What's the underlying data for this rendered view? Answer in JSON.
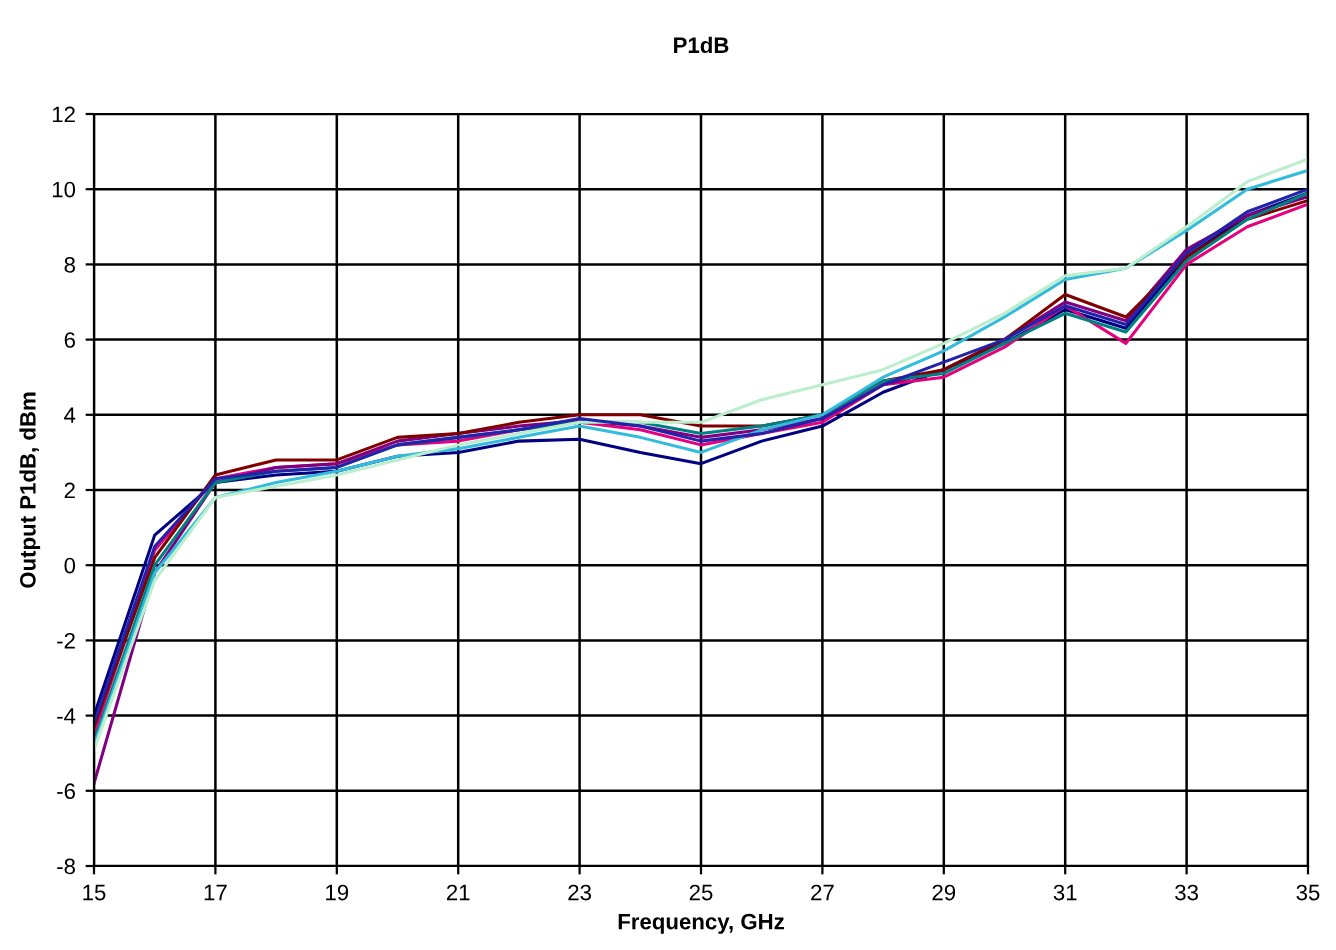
{
  "chart_data": {
    "type": "line",
    "title": "P1dB",
    "xlabel": "Frequency, GHz",
    "ylabel": "Output P1dB, dBm",
    "x": [
      15,
      16,
      17,
      18,
      19,
      20,
      21,
      22,
      23,
      24,
      25,
      26,
      27,
      28,
      29,
      30,
      31,
      32,
      33,
      34,
      35
    ],
    "series": [
      {
        "color": "#000080",
        "values": [
          -4.0,
          0.8,
          2.2,
          2.4,
          2.5,
          2.9,
          3.0,
          3.3,
          3.35,
          3.0,
          2.7,
          3.3,
          3.7,
          4.6,
          5.2,
          5.9,
          6.8,
          6.3,
          8.2,
          9.3,
          9.9
        ]
      },
      {
        "color": "#e6007e",
        "values": [
          -4.5,
          0.4,
          2.3,
          2.6,
          2.7,
          3.2,
          3.3,
          3.6,
          3.8,
          3.6,
          3.2,
          3.5,
          3.8,
          4.8,
          5.0,
          5.8,
          6.9,
          5.9,
          8.0,
          9.0,
          9.6
        ]
      },
      {
        "color": "#800080",
        "values": [
          -5.8,
          -0.2,
          2.2,
          2.6,
          2.7,
          3.3,
          3.5,
          3.7,
          3.85,
          3.7,
          3.4,
          3.6,
          3.9,
          4.8,
          5.2,
          6.0,
          7.0,
          6.5,
          8.4,
          9.3,
          9.8
        ]
      },
      {
        "color": "#800000",
        "values": [
          -4.3,
          0.2,
          2.4,
          2.8,
          2.8,
          3.4,
          3.5,
          3.8,
          4.0,
          4.0,
          3.7,
          3.7,
          4.0,
          4.9,
          5.2,
          6.0,
          7.2,
          6.6,
          8.2,
          9.2,
          9.7
        ]
      },
      {
        "color": "#008080",
        "values": [
          -4.7,
          0.0,
          2.2,
          2.5,
          2.6,
          3.2,
          3.4,
          3.6,
          3.8,
          3.8,
          3.5,
          3.7,
          4.0,
          4.9,
          5.1,
          5.9,
          6.7,
          6.2,
          8.1,
          9.2,
          9.9
        ]
      },
      {
        "color": "#33bbdd",
        "values": [
          -4.8,
          -0.2,
          1.8,
          2.2,
          2.5,
          2.9,
          3.1,
          3.4,
          3.7,
          3.4,
          3.0,
          3.6,
          4.0,
          5.0,
          5.7,
          6.6,
          7.6,
          7.9,
          8.9,
          10.0,
          10.5
        ]
      },
      {
        "color": "#bbeecc",
        "values": [
          -4.9,
          -0.4,
          1.8,
          2.1,
          2.4,
          2.8,
          3.2,
          3.5,
          3.8,
          3.8,
          3.8,
          4.4,
          4.8,
          5.2,
          5.9,
          6.7,
          7.7,
          7.9,
          9.0,
          10.2,
          10.8
        ]
      },
      {
        "color": "#2222aa",
        "values": [
          -4.2,
          0.5,
          2.3,
          2.5,
          2.6,
          3.2,
          3.4,
          3.6,
          3.9,
          3.7,
          3.3,
          3.5,
          3.9,
          4.8,
          5.4,
          6.0,
          6.9,
          6.4,
          8.3,
          9.4,
          10.0
        ]
      }
    ],
    "xlim": [
      15,
      35
    ],
    "xticks": [
      15,
      17,
      19,
      21,
      23,
      25,
      27,
      29,
      31,
      33,
      35
    ],
    "ylim": [
      -8,
      12
    ],
    "yticks": [
      -8,
      -6,
      -4,
      -2,
      0,
      2,
      4,
      6,
      8,
      10,
      12
    ],
    "grid": true,
    "marker": "none",
    "line_style": "solid",
    "legend": false
  }
}
